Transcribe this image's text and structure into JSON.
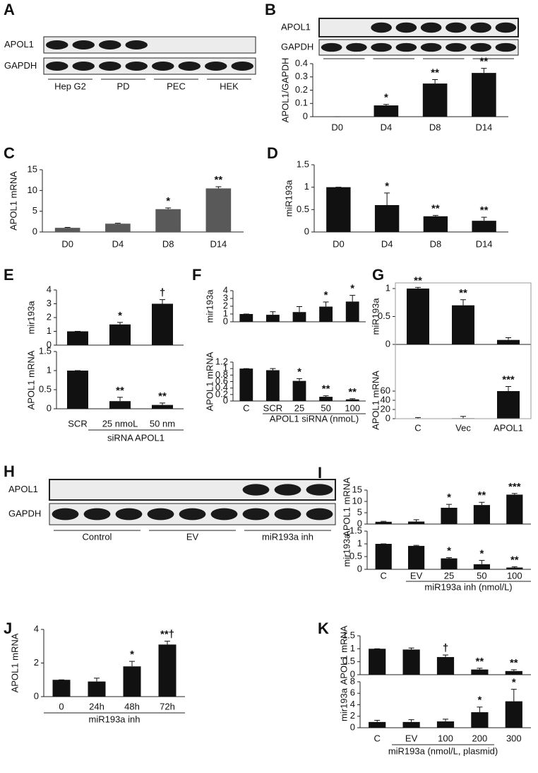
{
  "blots": [
    {
      "panel": "A",
      "rows": [
        "APOL1",
        "GAPDH"
      ],
      "groups": [
        "Hep G2",
        "PD",
        "PEC",
        "HEK"
      ]
    },
    {
      "panel": "B",
      "rows": [
        "APOL1",
        "GAPDH"
      ]
    },
    {
      "panel": "H",
      "rows": [
        "APOL1",
        "GAPDH"
      ],
      "groups": [
        "Control",
        "EV",
        "miR193a inh"
      ]
    }
  ],
  "chart_data": [
    {
      "type": "bar",
      "ylabel": "APOL1/GAPDH",
      "categories": [
        "D0",
        "D4",
        "D8",
        "D14"
      ],
      "values": [
        0,
        0.085,
        0.25,
        0.33
      ],
      "errors": [
        0,
        0.008,
        0.03,
        0.035
      ],
      "annotations": [
        null,
        "*",
        "**",
        "**"
      ],
      "ylim": [
        0,
        0.4
      ],
      "yticks": [
        0,
        0.1,
        0.2,
        0.3,
        0.4
      ],
      "color": "#111111"
    },
    {
      "type": "bar",
      "panel": "C",
      "ylabel": "APOL1 mRNA",
      "categories": [
        "D0",
        "D4",
        "D8",
        "D14"
      ],
      "values": [
        1,
        2,
        5.5,
        10.5
      ],
      "errors": [
        0.1,
        0.1,
        0.3,
        0.4
      ],
      "annotations": [
        null,
        null,
        "*",
        "**"
      ],
      "ylim": [
        0,
        15
      ],
      "yticks": [
        0,
        5,
        10,
        15
      ],
      "color": "#595959"
    },
    {
      "type": "bar",
      "panel": "D",
      "ylabel": "miR193a",
      "categories": [
        "D0",
        "D4",
        "D8",
        "D14"
      ],
      "values": [
        1,
        0.6,
        0.35,
        0.25
      ],
      "errors": [
        0,
        0.27,
        0.02,
        0.08
      ],
      "annotations": [
        null,
        "*",
        "**",
        "**"
      ],
      "ylim": [
        0,
        1.5
      ],
      "yticks": [
        0,
        0.5,
        1,
        1.5
      ],
      "color": "#111111"
    },
    {
      "type": "bar",
      "panel": "E",
      "ylabel": "mir193a",
      "values": [
        1,
        1.5,
        3
      ],
      "errors": [
        0,
        0.15,
        0.3
      ],
      "annotations": [
        null,
        "*",
        "†"
      ],
      "ylim": [
        0,
        4
      ],
      "yticks": [
        0,
        1,
        2,
        3,
        4
      ],
      "color": "#111111"
    },
    {
      "type": "bar",
      "ylabel": "APOL1 mRNA",
      "categories": [
        "SCR",
        "25 nmoL",
        "50 nm"
      ],
      "group_label": "siRNA APOL1",
      "values": [
        1,
        0.2,
        0.1
      ],
      "errors": [
        0,
        0.1,
        0.05
      ],
      "annotations": [
        null,
        "**",
        "**"
      ],
      "ylim": [
        0,
        1.5
      ],
      "yticks": [
        0,
        0.5,
        1,
        1.5
      ],
      "color": "#111111"
    },
    {
      "type": "bar",
      "panel": "F",
      "ylabel": "mir193a",
      "values": [
        1,
        0.9,
        1.25,
        1.95,
        2.6
      ],
      "errors": [
        0,
        0.4,
        0.7,
        0.6,
        0.8
      ],
      "annotations": [
        null,
        null,
        null,
        "*",
        "*"
      ],
      "ylim": [
        0,
        4
      ],
      "yticks": [
        0,
        1,
        2,
        3,
        4
      ],
      "color": "#111111"
    },
    {
      "type": "bar",
      "ylabel": "APOL1 mRNA",
      "categories": [
        "C",
        "SCR",
        "25",
        "50",
        "100"
      ],
      "group_label": "APOL1 siRNA (nmoL)",
      "values": [
        1,
        0.95,
        0.62,
        0.13,
        0.05
      ],
      "errors": [
        0,
        0.05,
        0.07,
        0.03,
        0.02
      ],
      "annotations": [
        null,
        null,
        "*",
        "**",
        "**"
      ],
      "ylim": [
        0,
        1.2
      ],
      "yticks": [
        0,
        0.2,
        0.4,
        0.6,
        0.8,
        1,
        1.2
      ],
      "color": "#111111"
    },
    {
      "type": "bar",
      "panel": "G",
      "ylabel": "miR193a",
      "values": [
        1,
        0.7,
        0.08
      ],
      "errors": [
        0.02,
        0.1,
        0.04
      ],
      "annotations": [
        "**",
        "**",
        null
      ],
      "ylim": [
        0,
        1
      ],
      "yticks": [
        0,
        0.5,
        1
      ],
      "color": "#111111"
    },
    {
      "type": "bar",
      "ylabel": "APOL1 mRNA",
      "categories": [
        "C",
        "Vec",
        "APOL1"
      ],
      "values": [
        0.5,
        1,
        60
      ],
      "errors": [
        2,
        4,
        10
      ],
      "annotations": [
        null,
        null,
        "***"
      ],
      "ylim": [
        0,
        80
      ],
      "yticks": [
        0,
        20,
        40,
        60
      ],
      "color": "#111111"
    },
    {
      "type": "bar",
      "panel": "I",
      "ylabel": "APOL1 mRNA",
      "values": [
        1,
        1.1,
        7.2,
        8.4,
        13
      ],
      "errors": [
        0.2,
        0.8,
        1.5,
        1.2,
        0.5
      ],
      "annotations": [
        null,
        null,
        "*",
        "**",
        "***"
      ],
      "ylim": [
        0,
        15
      ],
      "yticks": [
        0,
        5,
        10,
        15
      ],
      "color": "#111111"
    },
    {
      "type": "bar",
      "ylabel": "mir193a",
      "categories": [
        "C",
        "EV",
        "25",
        "50",
        "100"
      ],
      "group_label": "miR193a inh (nmol/L)",
      "values": [
        1,
        0.92,
        0.43,
        0.2,
        0.07
      ],
      "errors": [
        0,
        0.02,
        0.03,
        0.15,
        0.03
      ],
      "annotations": [
        null,
        null,
        "*",
        "*",
        "**"
      ],
      "ylim": [
        0,
        1.5
      ],
      "yticks": [
        0,
        0.5,
        1,
        1.5
      ],
      "color": "#111111"
    },
    {
      "type": "bar",
      "panel": "J",
      "ylabel": "APOL1 mRNA",
      "categories": [
        "0",
        "24h",
        "48h",
        "72h"
      ],
      "group_label": "miR193a inh",
      "values": [
        1,
        0.9,
        1.8,
        3.1
      ],
      "errors": [
        0,
        0.2,
        0.3,
        0.2
      ],
      "annotations": [
        null,
        null,
        "*",
        "**†"
      ],
      "ylim": [
        0,
        4
      ],
      "yticks": [
        0,
        2,
        4
      ],
      "color": "#111111"
    },
    {
      "type": "bar",
      "panel": "K",
      "ylabel": "APOL1 mRNA",
      "values": [
        1,
        0.97,
        0.68,
        0.2,
        0.14
      ],
      "errors": [
        0,
        0.06,
        0.08,
        0.05,
        0.05
      ],
      "annotations": [
        null,
        null,
        "†",
        "**",
        "**"
      ],
      "ylim": [
        0,
        1.5
      ],
      "yticks": [
        0,
        0.5,
        1,
        1.5
      ],
      "color": "#111111"
    },
    {
      "type": "bar",
      "ylabel": "mir193a",
      "categories": [
        "C",
        "EV",
        "100",
        "200",
        "300"
      ],
      "group_label": "miR193a  (nmol/L, plasmid)",
      "values": [
        1,
        1,
        1.1,
        2.7,
        4.6
      ],
      "errors": [
        0.3,
        0.4,
        0.4,
        0.9,
        2.1
      ],
      "annotations": [
        null,
        null,
        null,
        "*",
        "*"
      ],
      "ylim": [
        0,
        8
      ],
      "yticks": [
        0,
        2,
        4,
        6,
        8
      ],
      "color": "#111111"
    }
  ]
}
